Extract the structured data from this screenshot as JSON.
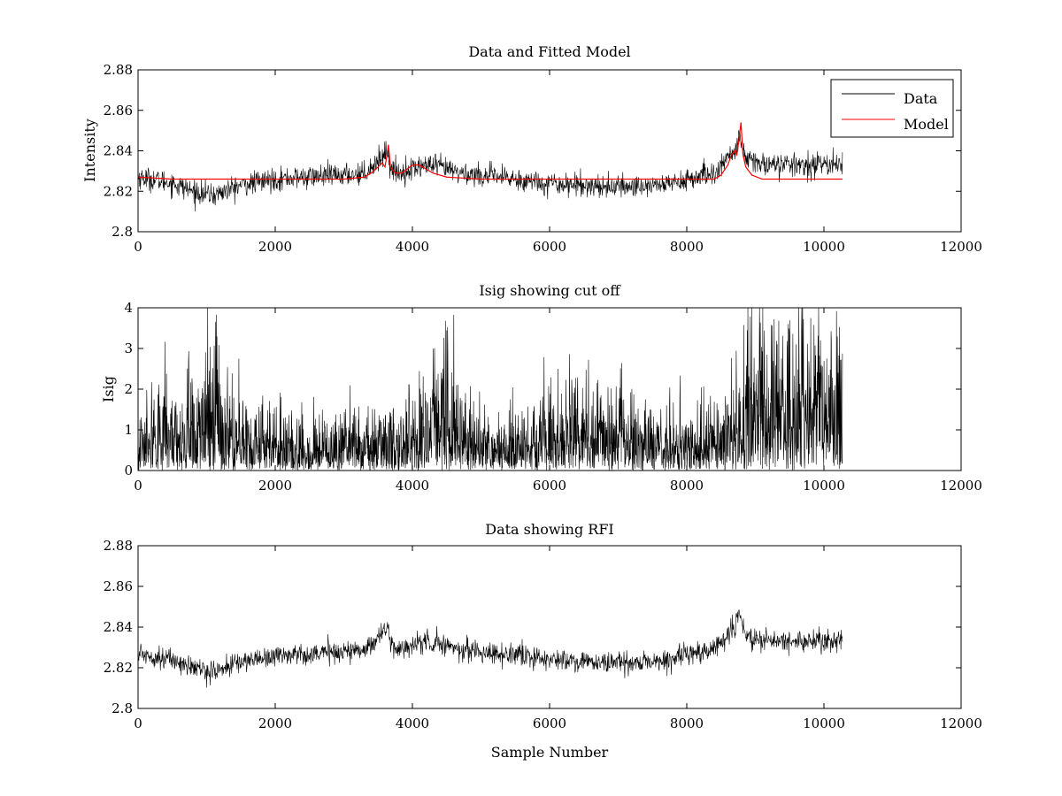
{
  "chart_data": [
    {
      "type": "line",
      "title": "Data and Fitted Model",
      "xlabel": "",
      "ylabel": "Intensity",
      "xlim": [
        0,
        12000
      ],
      "ylim": [
        2.8,
        2.88
      ],
      "xticks": [
        0,
        2000,
        4000,
        6000,
        8000,
        10000,
        12000
      ],
      "yticks": [
        2.8,
        2.82,
        2.84,
        2.86,
        2.88
      ],
      "xtick_labels": [
        "0",
        "2000",
        "4000",
        "6000",
        "8000",
        "10000",
        "12000"
      ],
      "ytick_labels": [
        "2.8",
        "2.82",
        "2.84",
        "2.86",
        "2.88"
      ],
      "grid": false,
      "legend_position": "top-right",
      "series": [
        {
          "name": "Data",
          "color": "#000000",
          "style": "noisy",
          "x_range": [
            0,
            10270
          ],
          "noise_std": 0.0028,
          "baseline": {
            "x": [
              0,
              500,
              800,
              1100,
              1500,
              2000,
              2500,
              3000,
              3300,
              3400,
              3500,
              3600,
              3640,
              3680,
              3800,
              4000,
              4200,
              4400,
              4700,
              5000,
              5500,
              6000,
              6500,
              7000,
              7500,
              7800,
              8000,
              8200,
              8400,
              8500,
              8600,
              8700,
              8770,
              8800,
              8850,
              9000,
              9500,
              10000,
              10270
            ],
            "y": [
              2.827,
              2.824,
              2.82,
              2.818,
              2.823,
              2.826,
              2.827,
              2.828,
              2.829,
              2.832,
              2.835,
              2.839,
              2.84,
              2.831,
              2.829,
              2.831,
              2.833,
              2.832,
              2.829,
              2.828,
              2.826,
              2.824,
              2.823,
              2.822,
              2.823,
              2.824,
              2.826,
              2.827,
              2.829,
              2.832,
              2.837,
              2.84,
              2.847,
              2.843,
              2.836,
              2.834,
              2.833,
              2.833,
              2.834
            ]
          }
        },
        {
          "name": "Model",
          "color": "#ff0000",
          "style": "smooth",
          "x": [
            0,
            500,
            1000,
            2000,
            3000,
            3300,
            3400,
            3500,
            3560,
            3600,
            3630,
            3650,
            3680,
            3750,
            3850,
            4000,
            4100,
            4200,
            4300,
            4500,
            5000,
            6000,
            7000,
            8000,
            8400,
            8500,
            8600,
            8650,
            8700,
            8730,
            8760,
            8790,
            8820,
            8860,
            8950,
            9100,
            9400,
            10000,
            10270
          ],
          "y": [
            2.827,
            2.826,
            2.826,
            2.826,
            2.826,
            2.827,
            2.829,
            2.832,
            2.834,
            2.832,
            2.838,
            2.843,
            2.832,
            2.829,
            2.829,
            2.833,
            2.833,
            2.831,
            2.829,
            2.827,
            2.826,
            2.826,
            2.826,
            2.826,
            2.826,
            2.828,
            2.833,
            2.838,
            2.84,
            2.838,
            2.845,
            2.854,
            2.838,
            2.832,
            2.828,
            2.826,
            2.826,
            2.826,
            2.826
          ]
        }
      ]
    },
    {
      "type": "line",
      "title": "Isig showing cut off",
      "xlabel": "",
      "ylabel": "Isig",
      "xlim": [
        0,
        12000
      ],
      "ylim": [
        0,
        4
      ],
      "xticks": [
        0,
        2000,
        4000,
        6000,
        8000,
        10000,
        12000
      ],
      "yticks": [
        0,
        1,
        2,
        3,
        4
      ],
      "xtick_labels": [
        "0",
        "2000",
        "4000",
        "6000",
        "8000",
        "10000",
        "12000"
      ],
      "ytick_labels": [
        "0",
        "1",
        "2",
        "3",
        "4"
      ],
      "grid": false,
      "series": [
        {
          "name": "Isig",
          "color": "#000000",
          "style": "spiky",
          "x_range": [
            0,
            10270
          ],
          "envelope": {
            "x": [
              0,
              600,
              1000,
              1150,
              1400,
              2000,
              3000,
              3500,
              4000,
              4300,
              4500,
              4700,
              5000,
              5500,
              6000,
              6500,
              7000,
              7500,
              8000,
              8500,
              8900,
              9200,
              9700,
              10270
            ],
            "y": [
              1.2,
              1.1,
              1.8,
              2.2,
              1.1,
              0.9,
              0.9,
              1.0,
              1.1,
              1.6,
              2.0,
              1.3,
              0.9,
              0.9,
              1.2,
              1.5,
              1.3,
              1.0,
              0.9,
              1.1,
              1.8,
              2.3,
              2.4,
              2.2
            ]
          },
          "peaks": [
            [
              1150,
              3.3
            ],
            [
              4480,
              3.68
            ],
            [
              9700,
              3.72
            ],
            [
              9480,
              3.6
            ],
            [
              9950,
              3.2
            ]
          ]
        }
      ]
    },
    {
      "type": "line",
      "title": "Data showing RFI",
      "xlabel": "Sample Number",
      "ylabel": "",
      "xlim": [
        0,
        12000
      ],
      "ylim": [
        2.8,
        2.88
      ],
      "xticks": [
        0,
        2000,
        4000,
        6000,
        8000,
        10000,
        12000
      ],
      "yticks": [
        2.8,
        2.82,
        2.84,
        2.86,
        2.88
      ],
      "xtick_labels": [
        "0",
        "2000",
        "4000",
        "6000",
        "8000",
        "10000",
        "12000"
      ],
      "ytick_labels": [
        "2.8",
        "2.82",
        "2.84",
        "2.86",
        "2.88"
      ],
      "grid": false,
      "series": [
        {
          "name": "Data",
          "color": "#000000",
          "style": "noisy",
          "x_range": [
            0,
            10270
          ],
          "noise_std": 0.0026,
          "baseline": {
            "x": [
              0,
              500,
              800,
              1100,
              1500,
              2000,
              2500,
              3000,
              3300,
              3400,
              3500,
              3600,
              3640,
              3680,
              3800,
              4000,
              4200,
              4400,
              4700,
              5000,
              5500,
              6000,
              6500,
              7000,
              7500,
              7800,
              8000,
              8200,
              8400,
              8500,
              8600,
              8700,
              8770,
              8800,
              8850,
              9000,
              9500,
              10000,
              10270
            ],
            "y": [
              2.827,
              2.824,
              2.82,
              2.818,
              2.823,
              2.826,
              2.827,
              2.828,
              2.829,
              2.832,
              2.835,
              2.839,
              2.84,
              2.831,
              2.829,
              2.831,
              2.833,
              2.832,
              2.829,
              2.828,
              2.826,
              2.824,
              2.823,
              2.822,
              2.823,
              2.824,
              2.826,
              2.827,
              2.829,
              2.832,
              2.837,
              2.84,
              2.847,
              2.843,
              2.836,
              2.834,
              2.833,
              2.833,
              2.834
            ]
          }
        }
      ]
    }
  ]
}
